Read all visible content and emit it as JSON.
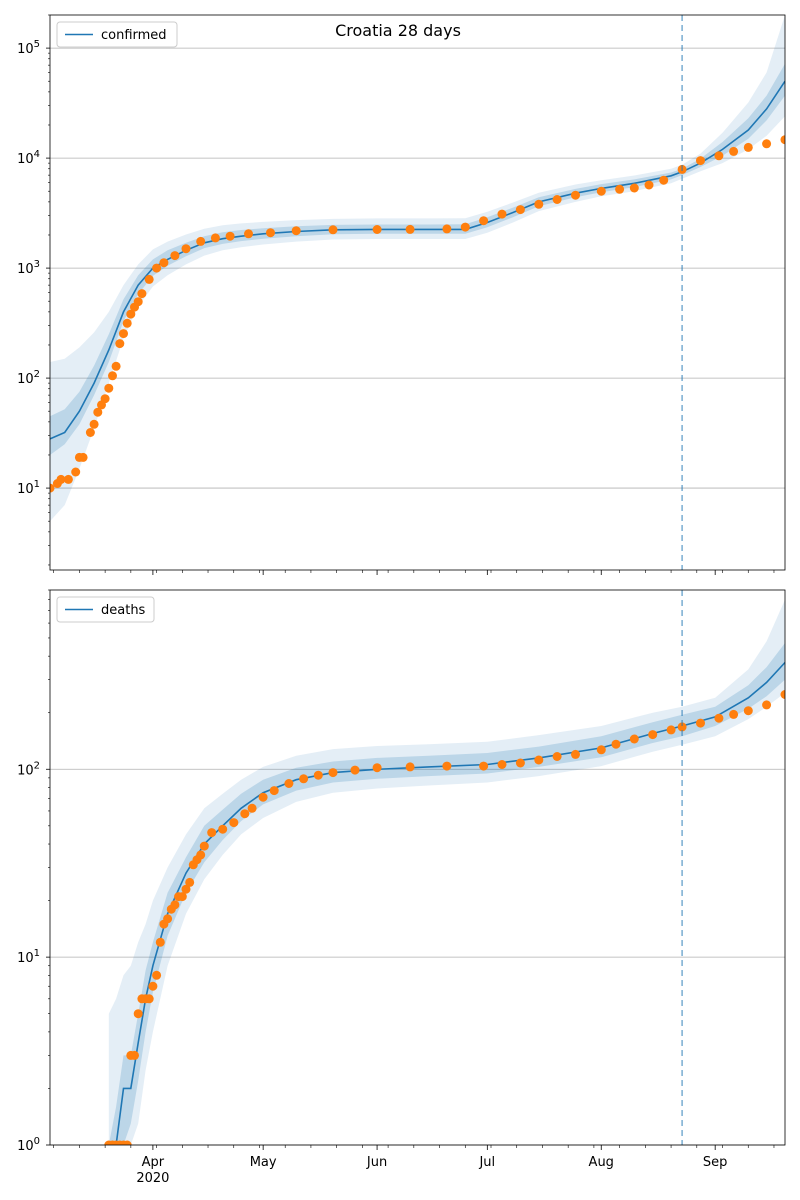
{
  "figure": {
    "title": "Croatia 28 days"
  },
  "colors": {
    "model_line": "#1f77b4",
    "observed": "#ff7f0e",
    "band": "#1f77b4",
    "grid": "#b0b0b0",
    "cutoff": "#1f77b4"
  },
  "x_axis": {
    "ticks": [
      {
        "date": "2020-04-01",
        "label": "Apr",
        "sublabel": "2020"
      },
      {
        "date": "2020-05-01",
        "label": "May",
        "sublabel": ""
      },
      {
        "date": "2020-06-01",
        "label": "Jun",
        "sublabel": ""
      },
      {
        "date": "2020-07-01",
        "label": "Jul",
        "sublabel": ""
      },
      {
        "date": "2020-08-01",
        "label": "Aug",
        "sublabel": ""
      },
      {
        "date": "2020-09-01",
        "label": "Sep",
        "sublabel": ""
      }
    ]
  },
  "chart_data": [
    {
      "type": "line",
      "panel": "confirmed",
      "title": "Croatia 28 days",
      "legend": {
        "label": "confirmed",
        "position": "upper-left"
      },
      "yscale": "log",
      "ylim": [
        1.8,
        200000
      ],
      "xlim": [
        "2020-03-04",
        "2020-09-20"
      ],
      "grid": "y-major",
      "yticks": [
        {
          "value": 10,
          "base": "10",
          "exp": "1"
        },
        {
          "value": 100,
          "base": "10",
          "exp": "2"
        },
        {
          "value": 1000,
          "base": "10",
          "exp": "3"
        },
        {
          "value": 10000,
          "base": "10",
          "exp": "4"
        },
        {
          "value": 100000,
          "base": "10",
          "exp": "5"
        }
      ],
      "cutoff_date": "2020-08-23",
      "model": {
        "x": [
          "2020-03-04",
          "2020-03-08",
          "2020-03-12",
          "2020-03-16",
          "2020-03-20",
          "2020-03-24",
          "2020-03-28",
          "2020-04-01",
          "2020-04-05",
          "2020-04-10",
          "2020-04-15",
          "2020-04-20",
          "2020-04-25",
          "2020-05-01",
          "2020-05-10",
          "2020-05-20",
          "2020-06-01",
          "2020-06-15",
          "2020-06-25",
          "2020-07-01",
          "2020-07-08",
          "2020-07-15",
          "2020-07-25",
          "2020-08-01",
          "2020-08-10",
          "2020-08-20",
          "2020-08-23",
          "2020-08-28",
          "2020-09-03",
          "2020-09-10",
          "2020-09-15",
          "2020-09-20"
        ],
        "median": [
          28,
          32,
          50,
          90,
          180,
          400,
          700,
          1000,
          1200,
          1450,
          1700,
          1850,
          1950,
          2050,
          2150,
          2230,
          2250,
          2250,
          2250,
          2600,
          3200,
          4000,
          4800,
          5300,
          5900,
          6900,
          7500,
          9000,
          12000,
          18000,
          28000,
          50000
        ],
        "band_inner": [
          [
            20,
            45
          ],
          [
            25,
            52
          ],
          [
            38,
            75
          ],
          [
            70,
            130
          ],
          [
            140,
            250
          ],
          [
            330,
            520
          ],
          [
            580,
            860
          ],
          [
            850,
            1200
          ],
          [
            1050,
            1450
          ],
          [
            1280,
            1700
          ],
          [
            1520,
            1950
          ],
          [
            1660,
            2120
          ],
          [
            1760,
            2220
          ],
          [
            1850,
            2300
          ],
          [
            1950,
            2400
          ],
          [
            2030,
            2470
          ],
          [
            2050,
            2490
          ],
          [
            2050,
            2490
          ],
          [
            2050,
            2500
          ],
          [
            2350,
            2900
          ],
          [
            2900,
            3550
          ],
          [
            3650,
            4400
          ],
          [
            4400,
            5250
          ],
          [
            4900,
            5800
          ],
          [
            5450,
            6400
          ],
          [
            6400,
            7400
          ],
          [
            7000,
            8000
          ],
          [
            8300,
            9900
          ],
          [
            10500,
            14000
          ],
          [
            15000,
            23000
          ],
          [
            22000,
            37000
          ],
          [
            37000,
            72000
          ]
        ],
        "band_outer": [
          [
            5,
            140
          ],
          [
            7,
            150
          ],
          [
            15,
            190
          ],
          [
            35,
            260
          ],
          [
            90,
            400
          ],
          [
            230,
            700
          ],
          [
            450,
            1080
          ],
          [
            680,
            1480
          ],
          [
            860,
            1740
          ],
          [
            1080,
            2020
          ],
          [
            1300,
            2280
          ],
          [
            1450,
            2450
          ],
          [
            1550,
            2550
          ],
          [
            1640,
            2630
          ],
          [
            1740,
            2730
          ],
          [
            1820,
            2800
          ],
          [
            1840,
            2830
          ],
          [
            1840,
            2830
          ],
          [
            1840,
            2840
          ],
          [
            2100,
            3250
          ],
          [
            2600,
            3950
          ],
          [
            3300,
            4850
          ],
          [
            4000,
            5750
          ],
          [
            4500,
            6300
          ],
          [
            5000,
            6950
          ],
          [
            5900,
            8000
          ],
          [
            6500,
            8700
          ],
          [
            7600,
            11000
          ],
          [
            9000,
            17000
          ],
          [
            12000,
            32000
          ],
          [
            16000,
            60000
          ],
          [
            24000,
            200000
          ]
        ]
      },
      "observed": {
        "x": [
          "2020-03-04",
          "2020-03-06",
          "2020-03-07",
          "2020-03-09",
          "2020-03-11",
          "2020-03-12",
          "2020-03-13",
          "2020-03-15",
          "2020-03-16",
          "2020-03-17",
          "2020-03-18",
          "2020-03-19",
          "2020-03-20",
          "2020-03-21",
          "2020-03-22",
          "2020-03-23",
          "2020-03-24",
          "2020-03-25",
          "2020-03-26",
          "2020-03-27",
          "2020-03-28",
          "2020-03-29",
          "2020-03-31",
          "2020-04-02",
          "2020-04-04",
          "2020-04-07",
          "2020-04-10",
          "2020-04-14",
          "2020-04-18",
          "2020-04-22",
          "2020-04-27",
          "2020-05-03",
          "2020-05-10",
          "2020-05-20",
          "2020-06-01",
          "2020-06-10",
          "2020-06-20",
          "2020-06-25",
          "2020-06-30",
          "2020-07-05",
          "2020-07-10",
          "2020-07-15",
          "2020-07-20",
          "2020-07-25",
          "2020-08-01",
          "2020-08-06",
          "2020-08-10",
          "2020-08-14",
          "2020-08-18",
          "2020-08-23",
          "2020-08-28",
          "2020-09-02",
          "2020-09-06",
          "2020-09-10",
          "2020-09-15",
          "2020-09-20"
        ],
        "values": [
          10,
          11,
          12,
          12,
          14,
          19,
          19,
          32,
          38,
          49,
          57,
          65,
          81,
          105,
          128,
          206,
          254,
          315,
          382,
          442,
          495,
          586,
          790,
          1000,
          1120,
          1300,
          1500,
          1750,
          1880,
          1950,
          2050,
          2100,
          2190,
          2230,
          2245,
          2247,
          2270,
          2360,
          2700,
          3100,
          3400,
          3800,
          4200,
          4600,
          5000,
          5200,
          5350,
          5700,
          6300,
          7900,
          9500,
          10500,
          11500,
          12500,
          13500,
          14700
        ]
      }
    },
    {
      "type": "line",
      "panel": "deaths",
      "legend": {
        "label": "deaths",
        "position": "upper-left"
      },
      "yscale": "log",
      "ylim": [
        1,
        900
      ],
      "xlim": [
        "2020-03-04",
        "2020-09-20"
      ],
      "grid": "y-major",
      "yticks": [
        {
          "value": 1,
          "base": "10",
          "exp": "0"
        },
        {
          "value": 10,
          "base": "10",
          "exp": "1"
        },
        {
          "value": 100,
          "base": "10",
          "exp": "2"
        }
      ],
      "cutoff_date": "2020-08-23",
      "model": {
        "x": [
          "2020-03-20",
          "2020-03-22",
          "2020-03-24",
          "2020-03-26",
          "2020-03-28",
          "2020-03-30",
          "2020-04-01",
          "2020-04-05",
          "2020-04-10",
          "2020-04-15",
          "2020-04-20",
          "2020-04-25",
          "2020-05-01",
          "2020-05-10",
          "2020-05-20",
          "2020-06-01",
          "2020-06-15",
          "2020-07-01",
          "2020-07-15",
          "2020-08-01",
          "2020-08-15",
          "2020-08-23",
          "2020-09-01",
          "2020-09-10",
          "2020-09-15",
          "2020-09-20"
        ],
        "median": [
          1,
          1,
          2,
          2,
          3.5,
          6,
          9,
          17,
          28,
          40,
          50,
          62,
          75,
          88,
          96,
          100,
          103,
          106,
          115,
          130,
          155,
          170,
          190,
          240,
          290,
          370
        ],
        "band_inner": [
          [
            1,
            1
          ],
          [
            1,
            1.6
          ],
          [
            1,
            3
          ],
          [
            1.3,
            3
          ],
          [
            2.2,
            5
          ],
          [
            4,
            8.5
          ],
          [
            6.5,
            12
          ],
          [
            13,
            22
          ],
          [
            22,
            34
          ],
          [
            32,
            50
          ],
          [
            42,
            61
          ],
          [
            53,
            74
          ],
          [
            65,
            88
          ],
          [
            77,
            102
          ],
          [
            85,
            110
          ],
          [
            89,
            115
          ],
          [
            92,
            118
          ],
          [
            95,
            122
          ],
          [
            103,
            132
          ],
          [
            116,
            150
          ],
          [
            138,
            178
          ],
          [
            150,
            195
          ],
          [
            170,
            215
          ],
          [
            210,
            280
          ],
          [
            245,
            350
          ],
          [
            300,
            470
          ]
        ],
        "band_outer": [
          [
            1,
            5
          ],
          [
            1,
            6
          ],
          [
            1,
            8
          ],
          [
            1,
            9
          ],
          [
            1.3,
            12
          ],
          [
            2.5,
            15
          ],
          [
            4,
            20
          ],
          [
            9,
            30
          ],
          [
            17,
            45
          ],
          [
            26,
            62
          ],
          [
            35,
            74
          ],
          [
            45,
            88
          ],
          [
            55,
            103
          ],
          [
            67,
            118
          ],
          [
            75,
            128
          ],
          [
            79,
            133
          ],
          [
            82,
            136
          ],
          [
            85,
            140
          ],
          [
            92,
            152
          ],
          [
            104,
            170
          ],
          [
            124,
            200
          ],
          [
            135,
            215
          ],
          [
            150,
            240
          ],
          [
            185,
            340
          ],
          [
            215,
            480
          ],
          [
            255,
            800
          ]
        ]
      },
      "observed": {
        "x": [
          "2020-03-20",
          "2020-03-21",
          "2020-03-22",
          "2020-03-23",
          "2020-03-24",
          "2020-03-25",
          "2020-03-26",
          "2020-03-27",
          "2020-03-28",
          "2020-03-29",
          "2020-03-30",
          "2020-03-31",
          "2020-04-01",
          "2020-04-02",
          "2020-04-03",
          "2020-04-04",
          "2020-04-05",
          "2020-04-06",
          "2020-04-07",
          "2020-04-08",
          "2020-04-09",
          "2020-04-10",
          "2020-04-11",
          "2020-04-12",
          "2020-04-13",
          "2020-04-14",
          "2020-04-15",
          "2020-04-17",
          "2020-04-20",
          "2020-04-23",
          "2020-04-26",
          "2020-04-28",
          "2020-05-01",
          "2020-05-04",
          "2020-05-08",
          "2020-05-12",
          "2020-05-16",
          "2020-05-20",
          "2020-05-26",
          "2020-06-01",
          "2020-06-10",
          "2020-06-20",
          "2020-06-30",
          "2020-07-05",
          "2020-07-10",
          "2020-07-15",
          "2020-07-20",
          "2020-07-25",
          "2020-08-01",
          "2020-08-05",
          "2020-08-10",
          "2020-08-15",
          "2020-08-20",
          "2020-08-23",
          "2020-08-28",
          "2020-09-02",
          "2020-09-06",
          "2020-09-10",
          "2020-09-15",
          "2020-09-20"
        ],
        "values": [
          1,
          1,
          1,
          1,
          1,
          1,
          3,
          3,
          5,
          6,
          6,
          6,
          7,
          8,
          12,
          15,
          16,
          18,
          19,
          21,
          21,
          23,
          25,
          31,
          33,
          35,
          39,
          46,
          48,
          52,
          58,
          62,
          71,
          77,
          84,
          89,
          93,
          96,
          99,
          102,
          103,
          104,
          104,
          106,
          108,
          112,
          117,
          120,
          127,
          136,
          145,
          153,
          162,
          168,
          176,
          187,
          196,
          205,
          220,
          250
        ]
      }
    }
  ]
}
